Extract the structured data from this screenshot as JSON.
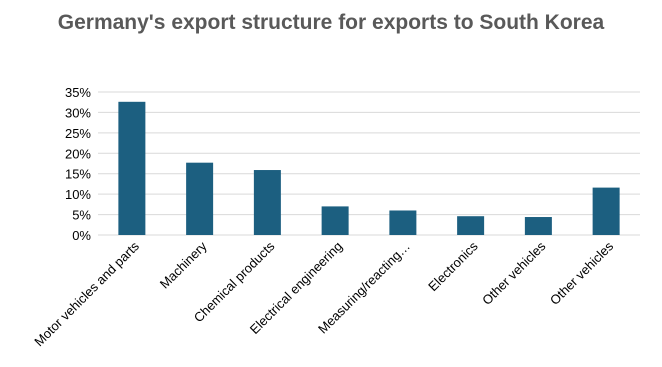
{
  "chart_data": {
    "type": "bar",
    "title": "Germany's export structure for exports to South Korea",
    "xlabel": "",
    "ylabel": "",
    "categories": [
      "Motor vehicles and parts",
      "Machinery",
      "Chemical products",
      "Electrical engineering",
      "Measuring/reacting…",
      "Electronics",
      "Other vehicles",
      "Other vehicles"
    ],
    "values": [
      32.6,
      17.7,
      15.9,
      7.0,
      6.0,
      4.6,
      4.4,
      11.6
    ],
    "ylim": [
      0,
      35
    ],
    "yticks": [
      "0%",
      "5%",
      "10%",
      "15%",
      "20%",
      "25%",
      "30%",
      "35%"
    ],
    "grid": true,
    "legend": "none",
    "colors": {
      "bar": "#1c5f80",
      "grid": "#d9d9d9",
      "text": "#000000",
      "title": "#595959"
    }
  }
}
